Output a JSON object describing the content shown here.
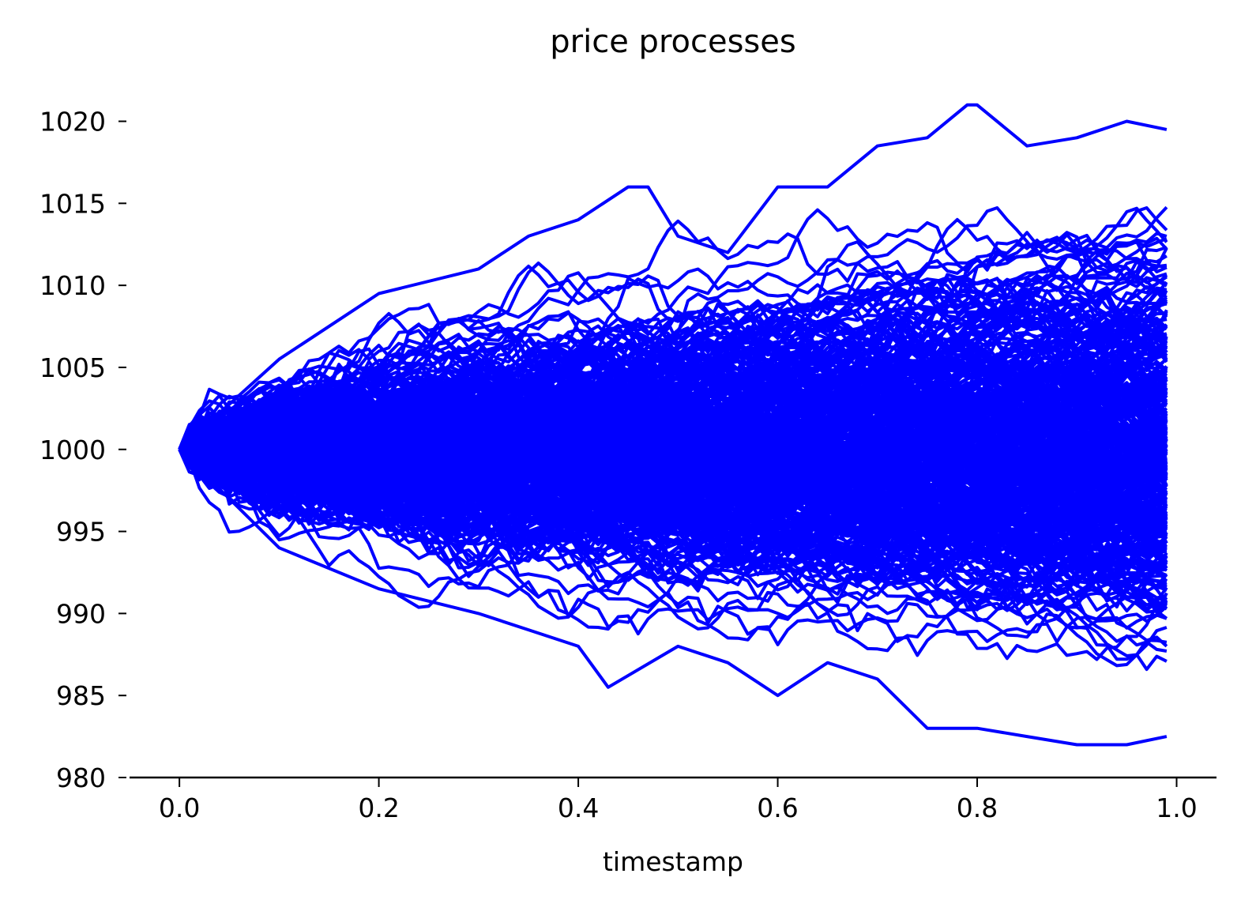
{
  "chart_data": {
    "type": "line",
    "title": "price processes",
    "xlabel": "timestamp",
    "ylabel": "",
    "xlim": [
      -0.05,
      1.04
    ],
    "ylim": [
      980,
      1022
    ],
    "xticks": [
      "0.0",
      "0.2",
      "0.4",
      "0.6",
      "0.8",
      "1.0"
    ],
    "xtick_values": [
      0.0,
      0.2,
      0.4,
      0.6,
      0.8,
      1.0
    ],
    "yticks": [
      "980",
      "985",
      "990",
      "995",
      "1000",
      "1005",
      "1010",
      "1015",
      "1020"
    ],
    "ytick_values": [
      980,
      985,
      990,
      995,
      1000,
      1005,
      1010,
      1015,
      1020
    ],
    "grid": false,
    "legend": "none",
    "spines": "bottom only",
    "line_color": "#0000ff",
    "series_description": {
      "count": 400,
      "start_value": 1000,
      "start_x": 0.0,
      "end_x": 0.99,
      "steps": 99,
      "step_size": 0.01
    },
    "notable_paths": [
      {
        "x": [
          0.0,
          0.1,
          0.2,
          0.3,
          0.35,
          0.4,
          0.45,
          0.47,
          0.5,
          0.55,
          0.6,
          0.65,
          0.7,
          0.75,
          0.79,
          0.8,
          0.85,
          0.9,
          0.95,
          0.99
        ],
        "values": [
          1000,
          1005.5,
          1009.5,
          1011,
          1013,
          1014,
          1016,
          1016,
          1013,
          1012,
          1016,
          1016,
          1018.5,
          1019,
          1021,
          1021,
          1018.5,
          1019,
          1020,
          1019.5
        ]
      },
      {
        "x": [
          0.0,
          0.1,
          0.2,
          0.3,
          0.35,
          0.4,
          0.43,
          0.5,
          0.55,
          0.6,
          0.65,
          0.7,
          0.75,
          0.8,
          0.85,
          0.9,
          0.95,
          0.99
        ],
        "values": [
          1000,
          994,
          991.5,
          990,
          989,
          988,
          985.5,
          988,
          987,
          985,
          987,
          986,
          983,
          983,
          982.5,
          982,
          982,
          982.5
        ]
      }
    ]
  }
}
